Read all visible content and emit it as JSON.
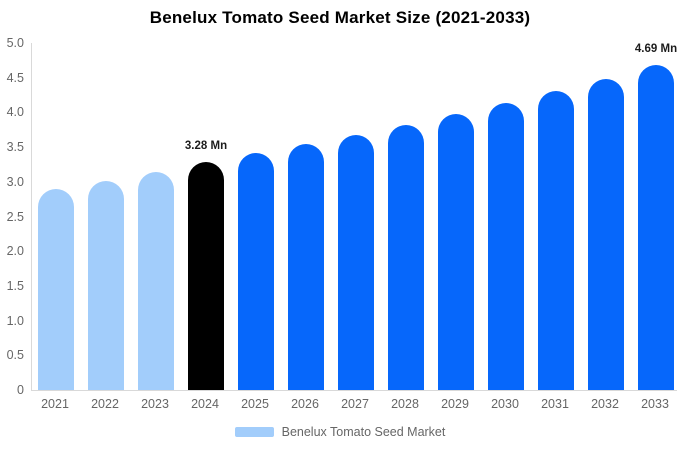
{
  "chart_data": {
    "type": "bar",
    "title": "Benelux Tomato Seed Market Size (2021-2033)",
    "categories": [
      "2021",
      "2022",
      "2023",
      "2024",
      "2025",
      "2026",
      "2027",
      "2028",
      "2029",
      "2030",
      "2031",
      "2032",
      "2033"
    ],
    "values": [
      2.89,
      3.01,
      3.14,
      3.28,
      3.41,
      3.55,
      3.67,
      3.82,
      3.98,
      4.14,
      4.31,
      4.48,
      4.69
    ],
    "unit": "Mn",
    "xlabel": "",
    "ylabel": "",
    "ylim": [
      0,
      5
    ],
    "yticks": [
      "5.0",
      "4.5",
      "4.0",
      "3.5",
      "3.0",
      "2.5",
      "2.0",
      "1.5",
      "1.0",
      "0.5",
      "0"
    ],
    "grid": false,
    "legend_position": "bottom",
    "bar_colors": [
      "light",
      "light",
      "light",
      "highlight",
      "primary",
      "primary",
      "primary",
      "primary",
      "primary",
      "primary",
      "primary",
      "primary",
      "primary"
    ],
    "annotations": [
      {
        "category": "2024",
        "label": "3.28 Mn"
      },
      {
        "category": "2033",
        "label": "4.69 Mn"
      }
    ]
  },
  "legend": {
    "label": "Benelux Tomato Seed Market"
  },
  "colors": {
    "light": "#a2cdfb",
    "primary": "#0667fb",
    "highlight": "#000000",
    "axis_line": "#d9d9d9",
    "text_secondary": "#666666",
    "title_text": "#000000",
    "value_label_text": "#1c1c1c"
  }
}
